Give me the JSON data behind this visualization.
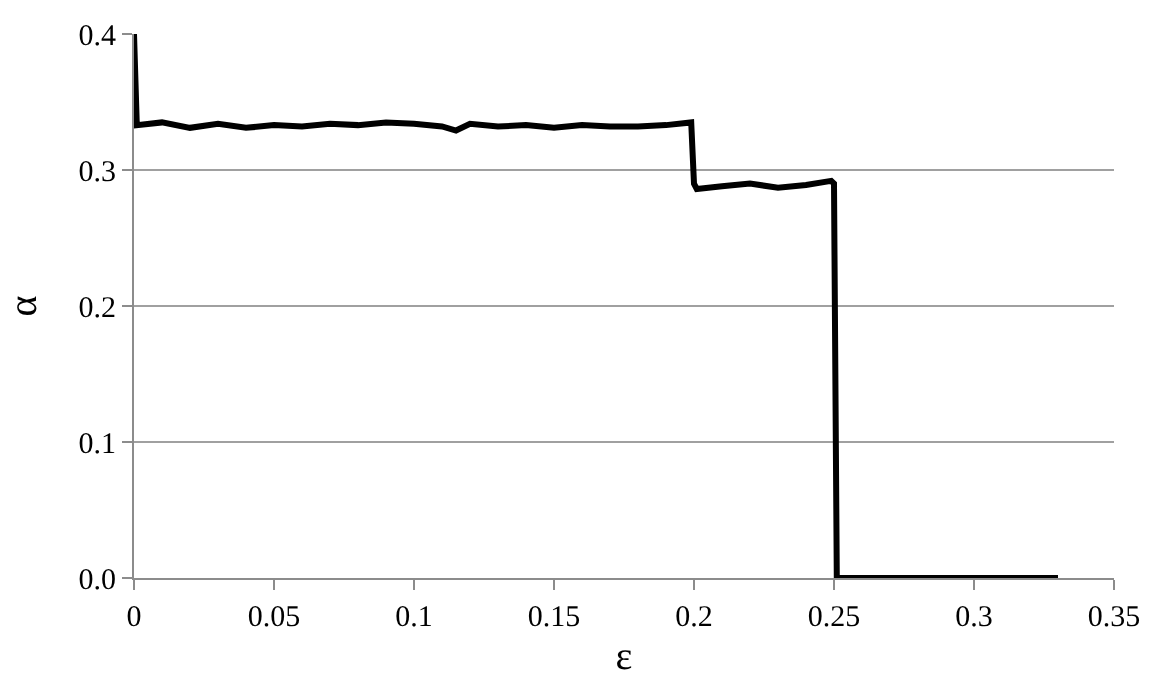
{
  "chart_data": {
    "type": "line",
    "xlabel": "ε",
    "ylabel": "α",
    "x": [
      0,
      0.001,
      0.01,
      0.02,
      0.03,
      0.04,
      0.05,
      0.06,
      0.07,
      0.08,
      0.09,
      0.1,
      0.11,
      0.115,
      0.12,
      0.13,
      0.14,
      0.15,
      0.16,
      0.17,
      0.18,
      0.19,
      0.199,
      0.2,
      0.201,
      0.21,
      0.22,
      0.23,
      0.24,
      0.249,
      0.25,
      0.251,
      0.3,
      0.33
    ],
    "series": [
      {
        "color": "#000000",
        "values": [
          0.4,
          0.333,
          0.335,
          0.331,
          0.334,
          0.331,
          0.333,
          0.332,
          0.334,
          0.333,
          0.335,
          0.334,
          0.332,
          0.329,
          0.334,
          0.332,
          0.333,
          0.331,
          0.333,
          0.332,
          0.332,
          0.333,
          0.335,
          0.29,
          0.286,
          0.288,
          0.29,
          0.287,
          0.289,
          0.292,
          0.29,
          0.0,
          0.0,
          0.0
        ]
      }
    ],
    "xlim": [
      0,
      0.35
    ],
    "ylim": [
      0,
      0.4
    ],
    "xticks": [
      0,
      0.05,
      0.1,
      0.15,
      0.2,
      0.25,
      0.3,
      0.35
    ],
    "yticks": [
      {
        "value": 0,
        "label": "0.0"
      },
      0.1,
      0.2,
      0.3,
      0.4
    ],
    "grid": "y",
    "legend": false,
    "marker": "none",
    "line_style": "solid"
  }
}
